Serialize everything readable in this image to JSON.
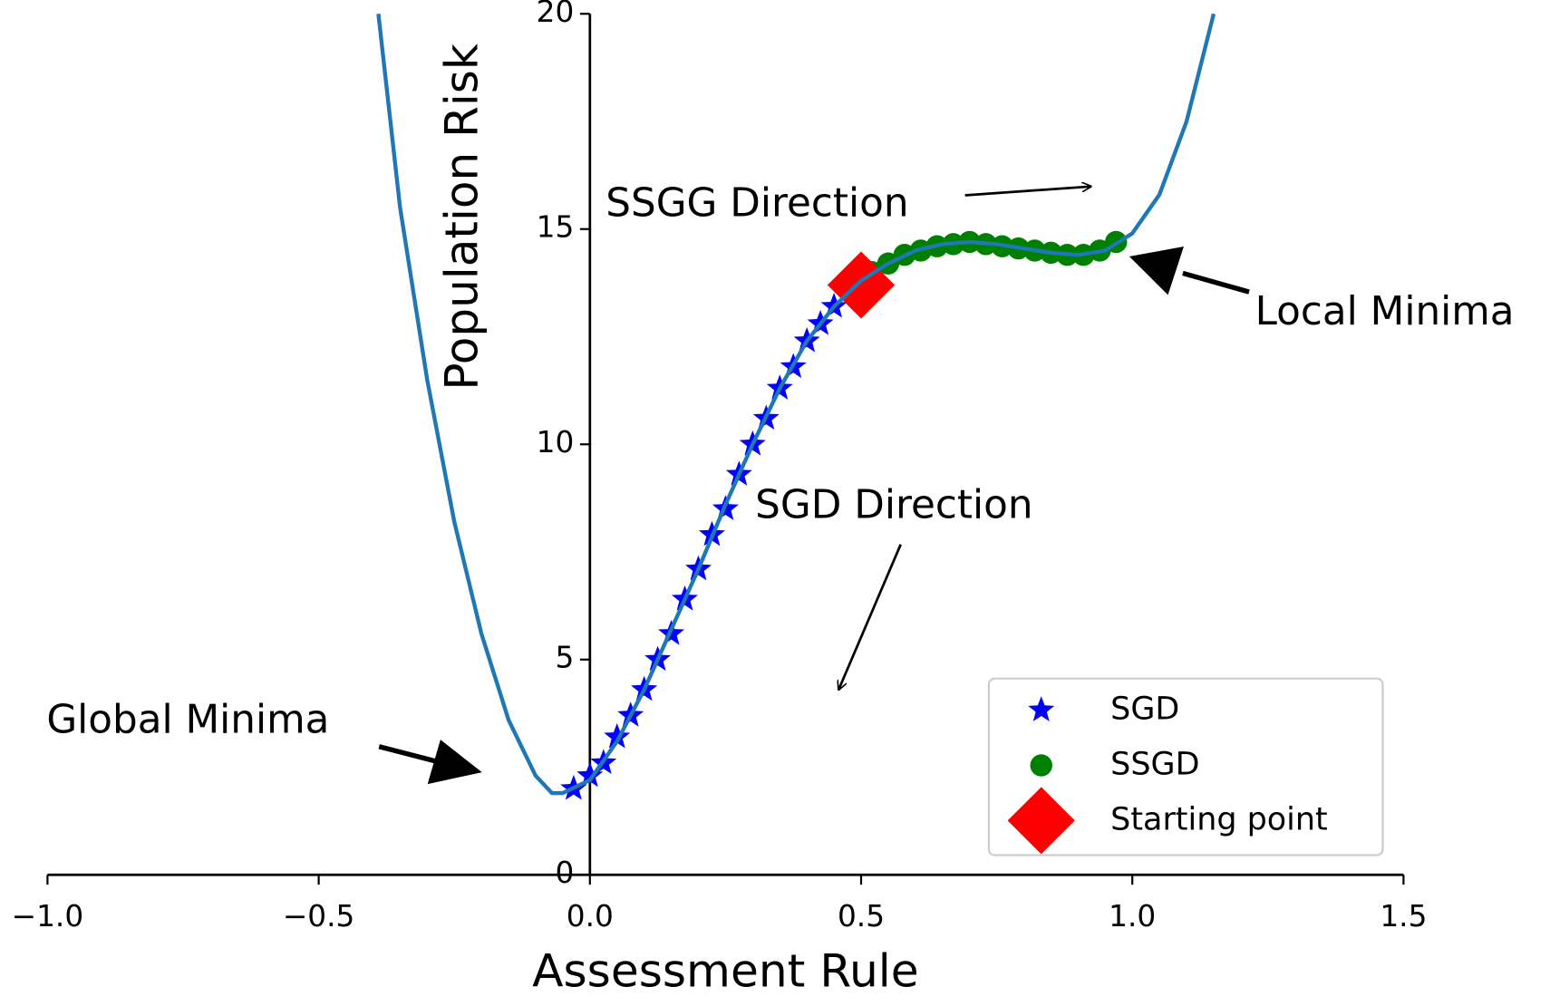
{
  "chart_data": {
    "type": "scatter",
    "xlabel": "Assessment Rule",
    "ylabel": "Population Risk",
    "xlim": [
      -1.0,
      1.5
    ],
    "ylim": [
      0,
      20
    ],
    "xticks": [
      {
        "value": -1.0,
        "label": "−1.0"
      },
      {
        "value": -0.5,
        "label": "−0.5"
      },
      {
        "value": 0,
        "label": "0.0"
      },
      0.5,
      {
        "value": 1.0,
        "label": "1.0"
      },
      1.5
    ],
    "yticks": [
      0,
      5,
      10,
      15,
      20
    ],
    "annotations": [
      "SSGG Direction",
      "SGD Direction",
      "Global Minima",
      "Local Minima"
    ],
    "curve": {
      "color": "#1f77b4",
      "x": [
        -0.39,
        -0.35,
        -0.3,
        -0.25,
        -0.2,
        -0.15,
        -0.1,
        -0.07,
        -0.05,
        0,
        0.05,
        0.1,
        0.15,
        0.2,
        0.25,
        0.3,
        0.35,
        0.4,
        0.45,
        0.5,
        0.55,
        0.6,
        0.65,
        0.7,
        0.75,
        0.8,
        0.85,
        0.9,
        0.95,
        1.0,
        1.05,
        1.1,
        1.15
      ],
      "values": [
        20,
        15.5,
        11.5,
        8.2,
        5.6,
        3.6,
        2.3,
        1.9,
        1.9,
        2.2,
        3.1,
        4.3,
        5.7,
        7.1,
        8.6,
        10.0,
        11.3,
        12.4,
        13.2,
        13.8,
        14.2,
        14.5,
        14.65,
        14.7,
        14.65,
        14.55,
        14.45,
        14.4,
        14.5,
        14.9,
        15.8,
        17.5,
        20
      ]
    },
    "series": [
      {
        "name": "SGD",
        "color": "#0000ff",
        "marker": "star",
        "x": [
          -0.03,
          0,
          0.025,
          0.05,
          0.075,
          0.1,
          0.125,
          0.15,
          0.175,
          0.2,
          0.225,
          0.25,
          0.275,
          0.3,
          0.325,
          0.35,
          0.375,
          0.4,
          0.425,
          0.45
        ],
        "values": [
          2.0,
          2.3,
          2.6,
          3.2,
          3.7,
          4.3,
          5.0,
          5.6,
          6.4,
          7.1,
          7.9,
          8.5,
          9.3,
          10.0,
          10.6,
          11.3,
          11.8,
          12.4,
          12.8,
          13.2
        ]
      },
      {
        "name": "SSGD",
        "color": "#008000",
        "marker": "circle",
        "x": [
          0.52,
          0.55,
          0.58,
          0.61,
          0.64,
          0.67,
          0.7,
          0.73,
          0.76,
          0.79,
          0.82,
          0.85,
          0.88,
          0.91,
          0.94,
          0.97
        ],
        "values": [
          14.0,
          14.2,
          14.4,
          14.5,
          14.6,
          14.65,
          14.7,
          14.65,
          14.6,
          14.55,
          14.5,
          14.45,
          14.4,
          14.4,
          14.5,
          14.7
        ]
      },
      {
        "name": "Starting point",
        "color": "#ff0000",
        "marker": "diamond",
        "x": [
          0.5
        ],
        "values": [
          13.7
        ]
      }
    ]
  }
}
